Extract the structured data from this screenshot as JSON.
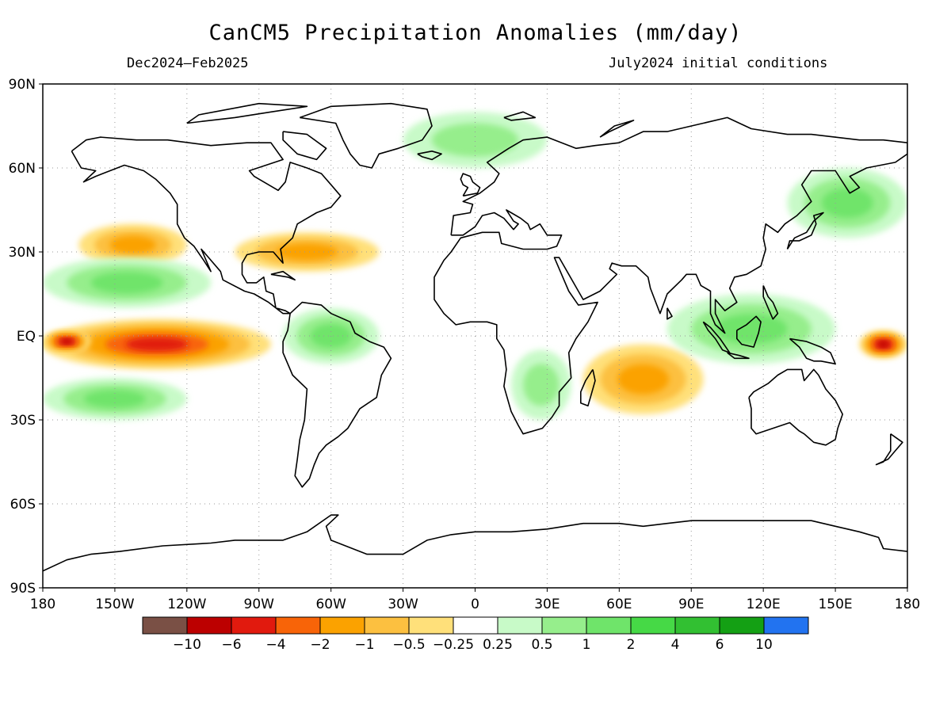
{
  "header": {
    "title": "CanCM5 Precipitation Anomalies (mm/day)",
    "period": "Dec2024–Feb2025",
    "init": "July2024 initial conditions"
  },
  "axes": {
    "lat_labels": [
      "90N",
      "60N",
      "30N",
      "EQ",
      "30S",
      "60S",
      "90S"
    ],
    "lon_labels": [
      "180",
      "150W",
      "120W",
      "90W",
      "60W",
      "30W",
      "0",
      "30E",
      "60E",
      "90E",
      "120E",
      "150E",
      "180"
    ]
  },
  "colorbar": {
    "labels": [
      "−10",
      "−6",
      "−4",
      "−2",
      "−1",
      "−0.5",
      "−0.25",
      "0.25",
      "0.5",
      "1",
      "2",
      "4",
      "6",
      "10"
    ],
    "colors": [
      "#7a5045",
      "#bc0000",
      "#e11a0e",
      "#f86408",
      "#fba200",
      "#fcc040",
      "#ffe07a",
      "#ffffff",
      "#c8fac8",
      "#96ee8c",
      "#6fe46a",
      "#46d946",
      "#32c032",
      "#14a014",
      "#2273f0"
    ]
  },
  "chart_data": {
    "type": "heatmap",
    "title": "CanCM5 Precipitation Anomalies (mm/day)",
    "subtitle_left": "Dec2024–Feb2025",
    "subtitle_right": "July2024 initial conditions",
    "units": "mm/day",
    "xlim": [
      -180,
      180
    ],
    "ylim": [
      -90,
      90
    ],
    "grid": true,
    "contour_levels": [
      -10,
      -6,
      -4,
      -2,
      -1,
      -0.5,
      -0.25,
      0.25,
      0.5,
      1,
      2,
      4,
      6,
      10
    ],
    "anomaly_regions": [
      {
        "name": "Central/East Equatorial Pacific dry",
        "lon": [
          -180,
          -85
        ],
        "lat": [
          -12,
          6
        ],
        "value": -4
      },
      {
        "name": "Dateline equatorial dry core",
        "lon": [
          -180,
          -160
        ],
        "lat": [
          -6,
          2
        ],
        "value": -6
      },
      {
        "name": "West Pacific equatorial dry core",
        "lon": [
          160,
          180
        ],
        "lat": [
          -8,
          2
        ],
        "value": -6
      },
      {
        "name": "Southwest Indian Ocean dry",
        "lon": [
          45,
          95
        ],
        "lat": [
          -28,
          -3
        ],
        "value": -1
      },
      {
        "name": "North Atlantic / US East Coast dry",
        "lon": [
          -100,
          -40
        ],
        "lat": [
          23,
          37
        ],
        "value": -1
      },
      {
        "name": "Northeast Pacific dry",
        "lon": [
          -165,
          -120
        ],
        "lat": [
          25,
          40
        ],
        "value": -1
      },
      {
        "name": "Maritime Continent wet",
        "lon": [
          80,
          150
        ],
        "lat": [
          -10,
          15
        ],
        "value": 1
      },
      {
        "name": "Northern South America wet",
        "lon": [
          -80,
          -40
        ],
        "lat": [
          -10,
          10
        ],
        "value": 1
      },
      {
        "name": "Tropical North Pacific wet",
        "lon": [
          -180,
          -110
        ],
        "lat": [
          10,
          28
        ],
        "value": 1
      },
      {
        "name": "South Pacific wet",
        "lon": [
          -180,
          -120
        ],
        "lat": [
          -30,
          -15
        ],
        "value": 1
      },
      {
        "name": "Southern Africa wet",
        "lon": [
          15,
          40
        ],
        "lat": [
          -30,
          -5
        ],
        "value": 0.5
      },
      {
        "name": "North Pacific / East Asia wet",
        "lon": [
          130,
          180
        ],
        "lat": [
          35,
          60
        ],
        "value": 1
      },
      {
        "name": "Arctic / North Atlantic wet",
        "lon": [
          -30,
          30
        ],
        "lat": [
          60,
          80
        ],
        "value": 0.5
      }
    ]
  }
}
